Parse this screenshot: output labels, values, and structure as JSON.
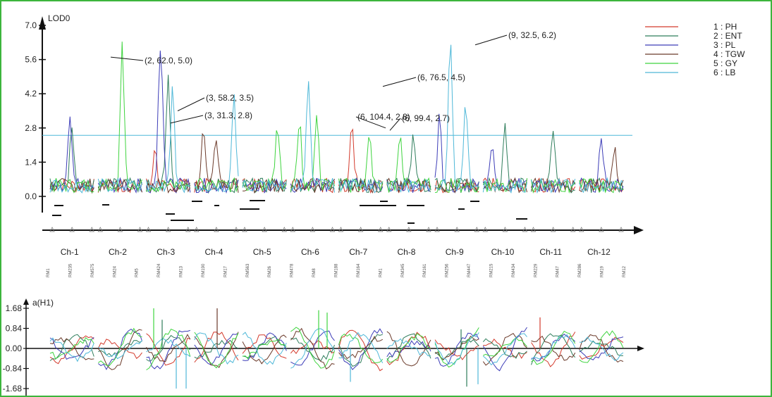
{
  "chart_data": [
    {
      "type": "line",
      "ylabel": "LOD0",
      "ylim": [
        -1.2,
        7.0
      ],
      "yticks": [
        "7.0",
        "5.6",
        "4.2",
        "2.8",
        "1.4",
        "0.0"
      ],
      "threshold": 2.5,
      "chromosomes": [
        "Ch-1",
        "Ch-2",
        "Ch-3",
        "Ch-4",
        "Ch-5",
        "Ch-6",
        "Ch-7",
        "Ch-8",
        "Ch-9",
        "Ch-10",
        "Ch-11",
        "Ch-12"
      ],
      "legend": [
        {
          "label": "1 : PH",
          "color": "#d33a2c"
        },
        {
          "label": "2 : ENT",
          "color": "#2e7d5b"
        },
        {
          "label": "3 : PL",
          "color": "#3d3db8"
        },
        {
          "label": "4 : TGW",
          "color": "#6b3a2a"
        },
        {
          "label": "5 : GY",
          "color": "#3fd43f"
        },
        {
          "label": "6 : LB",
          "color": "#4fb8d8"
        }
      ],
      "legend_position": "top-right",
      "annotations": [
        "(2, 62.0, 5.0)",
        "(3, 58.2, 3.5)",
        "(3, 31.3, 2.8)",
        "(6, 76.5, 4.5)",
        "(6, 104.4, 2.8)",
        "(6, 99.4, 2.7)",
        "(9, 32.5, 6.2)"
      ],
      "markers": [
        "RM1",
        "RM235",
        "RM575",
        "RM24",
        "RM5",
        "RM424",
        "RM13",
        "RM190",
        "RM17",
        "RM563",
        "RM26",
        "RM478",
        "RM8",
        "RM188",
        "RM164",
        "RM1",
        "RM345",
        "RM161",
        "RM256",
        "RM447",
        "RM215",
        "RM434",
        "RM229",
        "RM47",
        "RM286",
        "RM19",
        "RM12"
      ]
    },
    {
      "type": "line",
      "ylabel": "a(H1)",
      "ylim": [
        -1.68,
        1.68
      ],
      "yticks": [
        "1.68",
        "0.84",
        "0.00",
        "-0.84",
        "-1.68"
      ]
    }
  ]
}
